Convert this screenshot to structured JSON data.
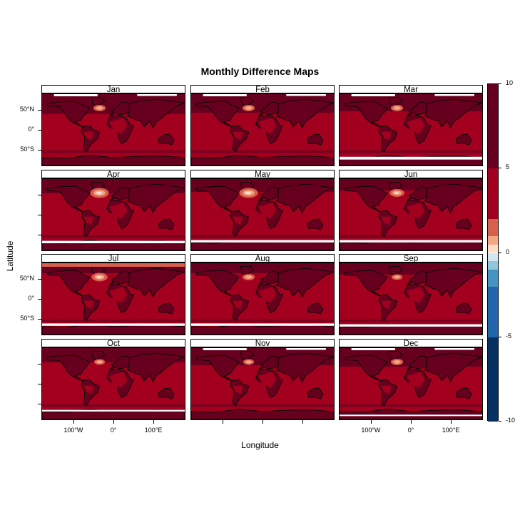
{
  "title": "Monthly Difference Maps",
  "xlabel": "Longitude",
  "ylabel": "Latitude",
  "panels": [
    "Jan",
    "Feb",
    "Mar",
    "Apr",
    "May",
    "Jun",
    "Jul",
    "Aug",
    "Sep",
    "Oct",
    "Nov",
    "Dec"
  ],
  "x_ticks": [
    "100°W",
    "0°",
    "100°E"
  ],
  "y_ticks": [
    "50°N",
    "0°",
    "50°S"
  ],
  "colorbar": {
    "ticks": [
      "10",
      "5",
      "0",
      "-5",
      "-10"
    ],
    "range": [
      -10,
      10
    ],
    "colors": {
      "dark_red": "#67001f",
      "red": "#a2001e",
      "mid_red": "#d6604d",
      "light_red": "#f4a582",
      "pale_red": "#fddbc7",
      "pale_blue": "#d1e5f0",
      "light_blue": "#92c5de",
      "mid_blue": "#4393c3",
      "blue": "#2166ac",
      "dark_blue": "#053061"
    }
  },
  "chart_data": {
    "type": "heatmap",
    "title": "Monthly Difference Maps",
    "xlabel": "Longitude",
    "ylabel": "Latitude",
    "panels": [
      "Jan",
      "Feb",
      "Mar",
      "Apr",
      "May",
      "Jun",
      "Jul",
      "Aug",
      "Sep",
      "Oct",
      "Nov",
      "Dec"
    ],
    "layout": "4 rows x 3 columns",
    "xlim": [
      -180,
      180
    ],
    "ylim": [
      -90,
      90
    ],
    "colorbar_range": [
      -10,
      10
    ],
    "colorbar_ticks": [
      -10,
      -5,
      0,
      5,
      10
    ],
    "dominant_value_range": [
      2,
      5
    ],
    "high_latitude_value_range": [
      5,
      10
    ],
    "north_atlantic_min_value": -1
  }
}
